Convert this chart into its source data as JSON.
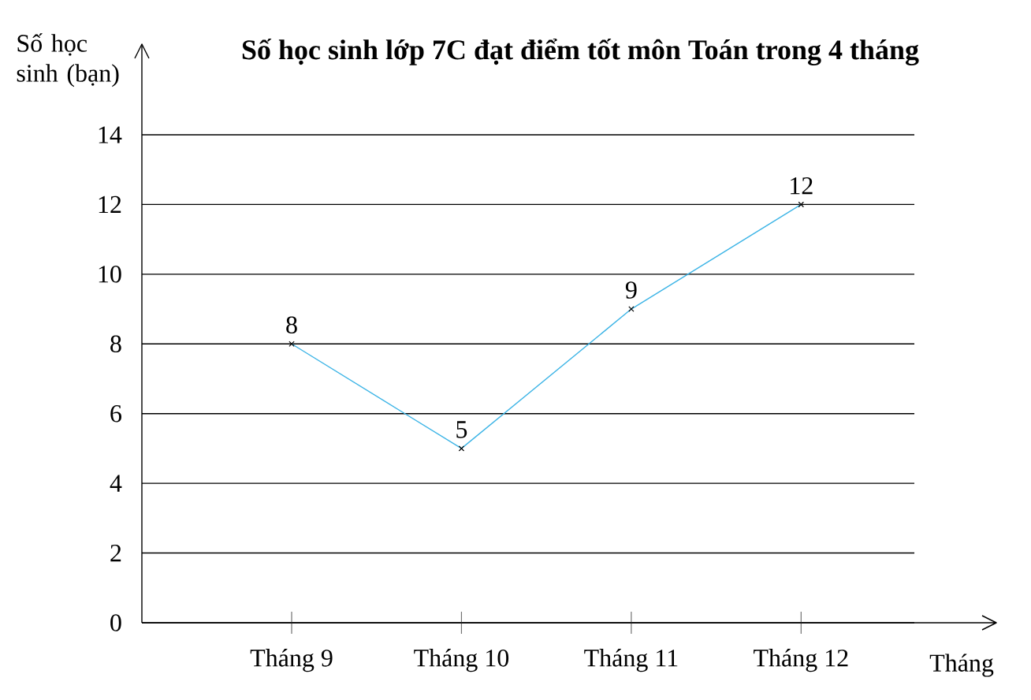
{
  "chart_data": {
    "type": "line",
    "title": "Số học sinh lớp 7C đạt điểm tốt môn Toán trong 4 tháng",
    "xlabel": "Tháng",
    "ylabel": "Số học sinh (bạn)",
    "categories": [
      "Tháng 9",
      "Tháng 10",
      "Tháng 11",
      "Tháng 12"
    ],
    "values": [
      8,
      5,
      9,
      12
    ],
    "color": "#3cb4e6",
    "ylim": [
      0,
      16.6
    ],
    "yticks": [
      0,
      2,
      4,
      6,
      8,
      10,
      12,
      14
    ],
    "grid": "y",
    "marker": "cross",
    "line_style": "solid",
    "data_labels": true
  }
}
